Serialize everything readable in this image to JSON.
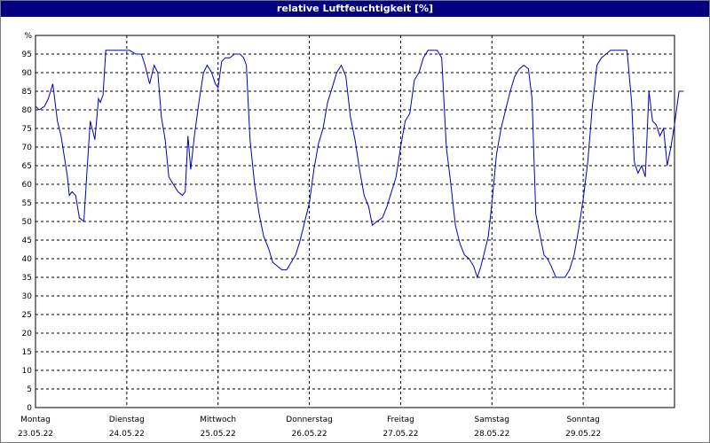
{
  "window": {
    "title": "relative Luftfeuchtigkeit [%]"
  },
  "chart_data": {
    "type": "line",
    "title": "relative Luftfeuchtigkeit [%]",
    "ylabel": "%",
    "ylim": [
      0,
      100
    ],
    "xlim": [
      0,
      7
    ],
    "grid": true,
    "yticks": [
      0,
      5,
      10,
      15,
      20,
      25,
      30,
      35,
      40,
      45,
      50,
      55,
      60,
      65,
      70,
      75,
      80,
      85,
      90,
      95
    ],
    "xticks": [
      {
        "day": "Montag",
        "date": "23.05.22",
        "x": 0
      },
      {
        "day": "Dienstag",
        "date": "24.05.22",
        "x": 1
      },
      {
        "day": "Mittwoch",
        "date": "25.05.22",
        "x": 2
      },
      {
        "day": "Donnerstag",
        "date": "26.05.22",
        "x": 3
      },
      {
        "day": "Freitag",
        "date": "27.05.22",
        "x": 4
      },
      {
        "day": "Samstag",
        "date": "28.05.22",
        "x": 5
      },
      {
        "day": "Sonntag",
        "date": "29.05.22",
        "x": 6
      }
    ],
    "series": [
      {
        "color": "#0000c0",
        "points": [
          [
            0.0,
            81
          ],
          [
            0.04,
            80
          ],
          [
            0.1,
            81
          ],
          [
            0.14,
            83
          ],
          [
            0.19,
            87
          ],
          [
            0.24,
            77
          ],
          [
            0.28,
            73
          ],
          [
            0.35,
            62
          ],
          [
            0.37,
            57
          ],
          [
            0.4,
            58
          ],
          [
            0.44,
            57
          ],
          [
            0.48,
            51
          ],
          [
            0.53,
            50
          ],
          [
            0.56,
            62
          ],
          [
            0.6,
            77
          ],
          [
            0.65,
            72
          ],
          [
            0.69,
            83
          ],
          [
            0.71,
            82
          ],
          [
            0.74,
            84
          ],
          [
            0.77,
            96
          ],
          [
            1.03,
            96
          ],
          [
            1.1,
            95
          ],
          [
            1.16,
            95
          ],
          [
            1.2,
            92
          ],
          [
            1.25,
            87
          ],
          [
            1.3,
            92
          ],
          [
            1.34,
            90
          ],
          [
            1.38,
            78
          ],
          [
            1.42,
            72
          ],
          [
            1.46,
            62
          ],
          [
            1.51,
            60
          ],
          [
            1.56,
            58
          ],
          [
            1.61,
            57
          ],
          [
            1.64,
            58
          ],
          [
            1.67,
            73
          ],
          [
            1.7,
            64
          ],
          [
            1.74,
            73
          ],
          [
            1.79,
            82
          ],
          [
            1.84,
            90
          ],
          [
            1.88,
            92
          ],
          [
            1.93,
            90
          ],
          [
            1.97,
            87
          ],
          [
            2.0,
            86
          ],
          [
            2.04,
            93
          ],
          [
            2.08,
            94
          ],
          [
            2.13,
            94
          ],
          [
            2.18,
            95
          ],
          [
            2.24,
            95
          ],
          [
            2.28,
            94
          ],
          [
            2.31,
            92
          ],
          [
            2.35,
            72
          ],
          [
            2.4,
            60
          ],
          [
            2.45,
            52
          ],
          [
            2.5,
            46
          ],
          [
            2.55,
            43
          ],
          [
            2.6,
            39
          ],
          [
            2.65,
            38
          ],
          [
            2.7,
            37
          ],
          [
            2.75,
            37
          ],
          [
            2.8,
            39
          ],
          [
            2.85,
            41
          ],
          [
            2.9,
            45
          ],
          [
            2.95,
            50
          ],
          [
            3.0,
            55
          ],
          [
            3.05,
            64
          ],
          [
            3.1,
            71
          ],
          [
            3.15,
            75
          ],
          [
            3.2,
            82
          ],
          [
            3.25,
            86
          ],
          [
            3.3,
            90
          ],
          [
            3.35,
            92
          ],
          [
            3.4,
            89
          ],
          [
            3.45,
            78
          ],
          [
            3.5,
            72
          ],
          [
            3.55,
            64
          ],
          [
            3.6,
            57
          ],
          [
            3.65,
            54
          ],
          [
            3.69,
            49
          ],
          [
            3.74,
            50
          ],
          [
            3.8,
            51
          ],
          [
            3.85,
            54
          ],
          [
            3.9,
            58
          ],
          [
            3.95,
            62
          ],
          [
            4.0,
            70
          ],
          [
            4.05,
            77
          ],
          [
            4.1,
            79
          ],
          [
            4.15,
            88
          ],
          [
            4.2,
            90
          ],
          [
            4.25,
            94
          ],
          [
            4.3,
            96
          ],
          [
            4.4,
            96
          ],
          [
            4.45,
            94
          ],
          [
            4.5,
            70
          ],
          [
            4.55,
            60
          ],
          [
            4.6,
            49
          ],
          [
            4.65,
            44
          ],
          [
            4.7,
            41
          ],
          [
            4.75,
            40
          ],
          [
            4.8,
            38
          ],
          [
            4.84,
            35
          ],
          [
            4.88,
            38
          ],
          [
            4.92,
            42
          ],
          [
            4.96,
            46
          ],
          [
            5.0,
            55
          ],
          [
            5.05,
            68
          ],
          [
            5.1,
            75
          ],
          [
            5.15,
            80
          ],
          [
            5.2,
            85
          ],
          [
            5.25,
            89
          ],
          [
            5.3,
            91
          ],
          [
            5.35,
            92
          ],
          [
            5.4,
            91
          ],
          [
            5.44,
            83
          ],
          [
            5.48,
            52
          ],
          [
            5.53,
            46
          ],
          [
            5.57,
            41
          ],
          [
            5.61,
            40
          ],
          [
            5.65,
            38
          ],
          [
            5.7,
            35
          ],
          [
            5.75,
            35
          ],
          [
            5.8,
            35
          ],
          [
            5.85,
            37
          ],
          [
            5.9,
            41
          ],
          [
            5.95,
            48
          ],
          [
            6.0,
            56
          ],
          [
            6.05,
            66
          ],
          [
            6.1,
            81
          ],
          [
            6.15,
            92
          ],
          [
            6.2,
            94
          ],
          [
            6.25,
            95
          ],
          [
            6.3,
            96
          ],
          [
            6.4,
            96
          ],
          [
            6.48,
            96
          ],
          [
            6.53,
            82
          ],
          [
            6.56,
            66
          ],
          [
            6.6,
            63
          ],
          [
            6.64,
            65
          ],
          [
            6.68,
            62
          ],
          [
            6.72,
            85
          ],
          [
            6.76,
            77
          ],
          [
            6.8,
            76
          ],
          [
            6.84,
            73
          ],
          [
            6.88,
            75
          ],
          [
            6.92,
            65
          ],
          [
            6.96,
            70
          ],
          [
            7.0,
            76
          ],
          [
            7.05,
            85
          ],
          [
            7.1,
            85
          ]
        ]
      }
    ]
  }
}
